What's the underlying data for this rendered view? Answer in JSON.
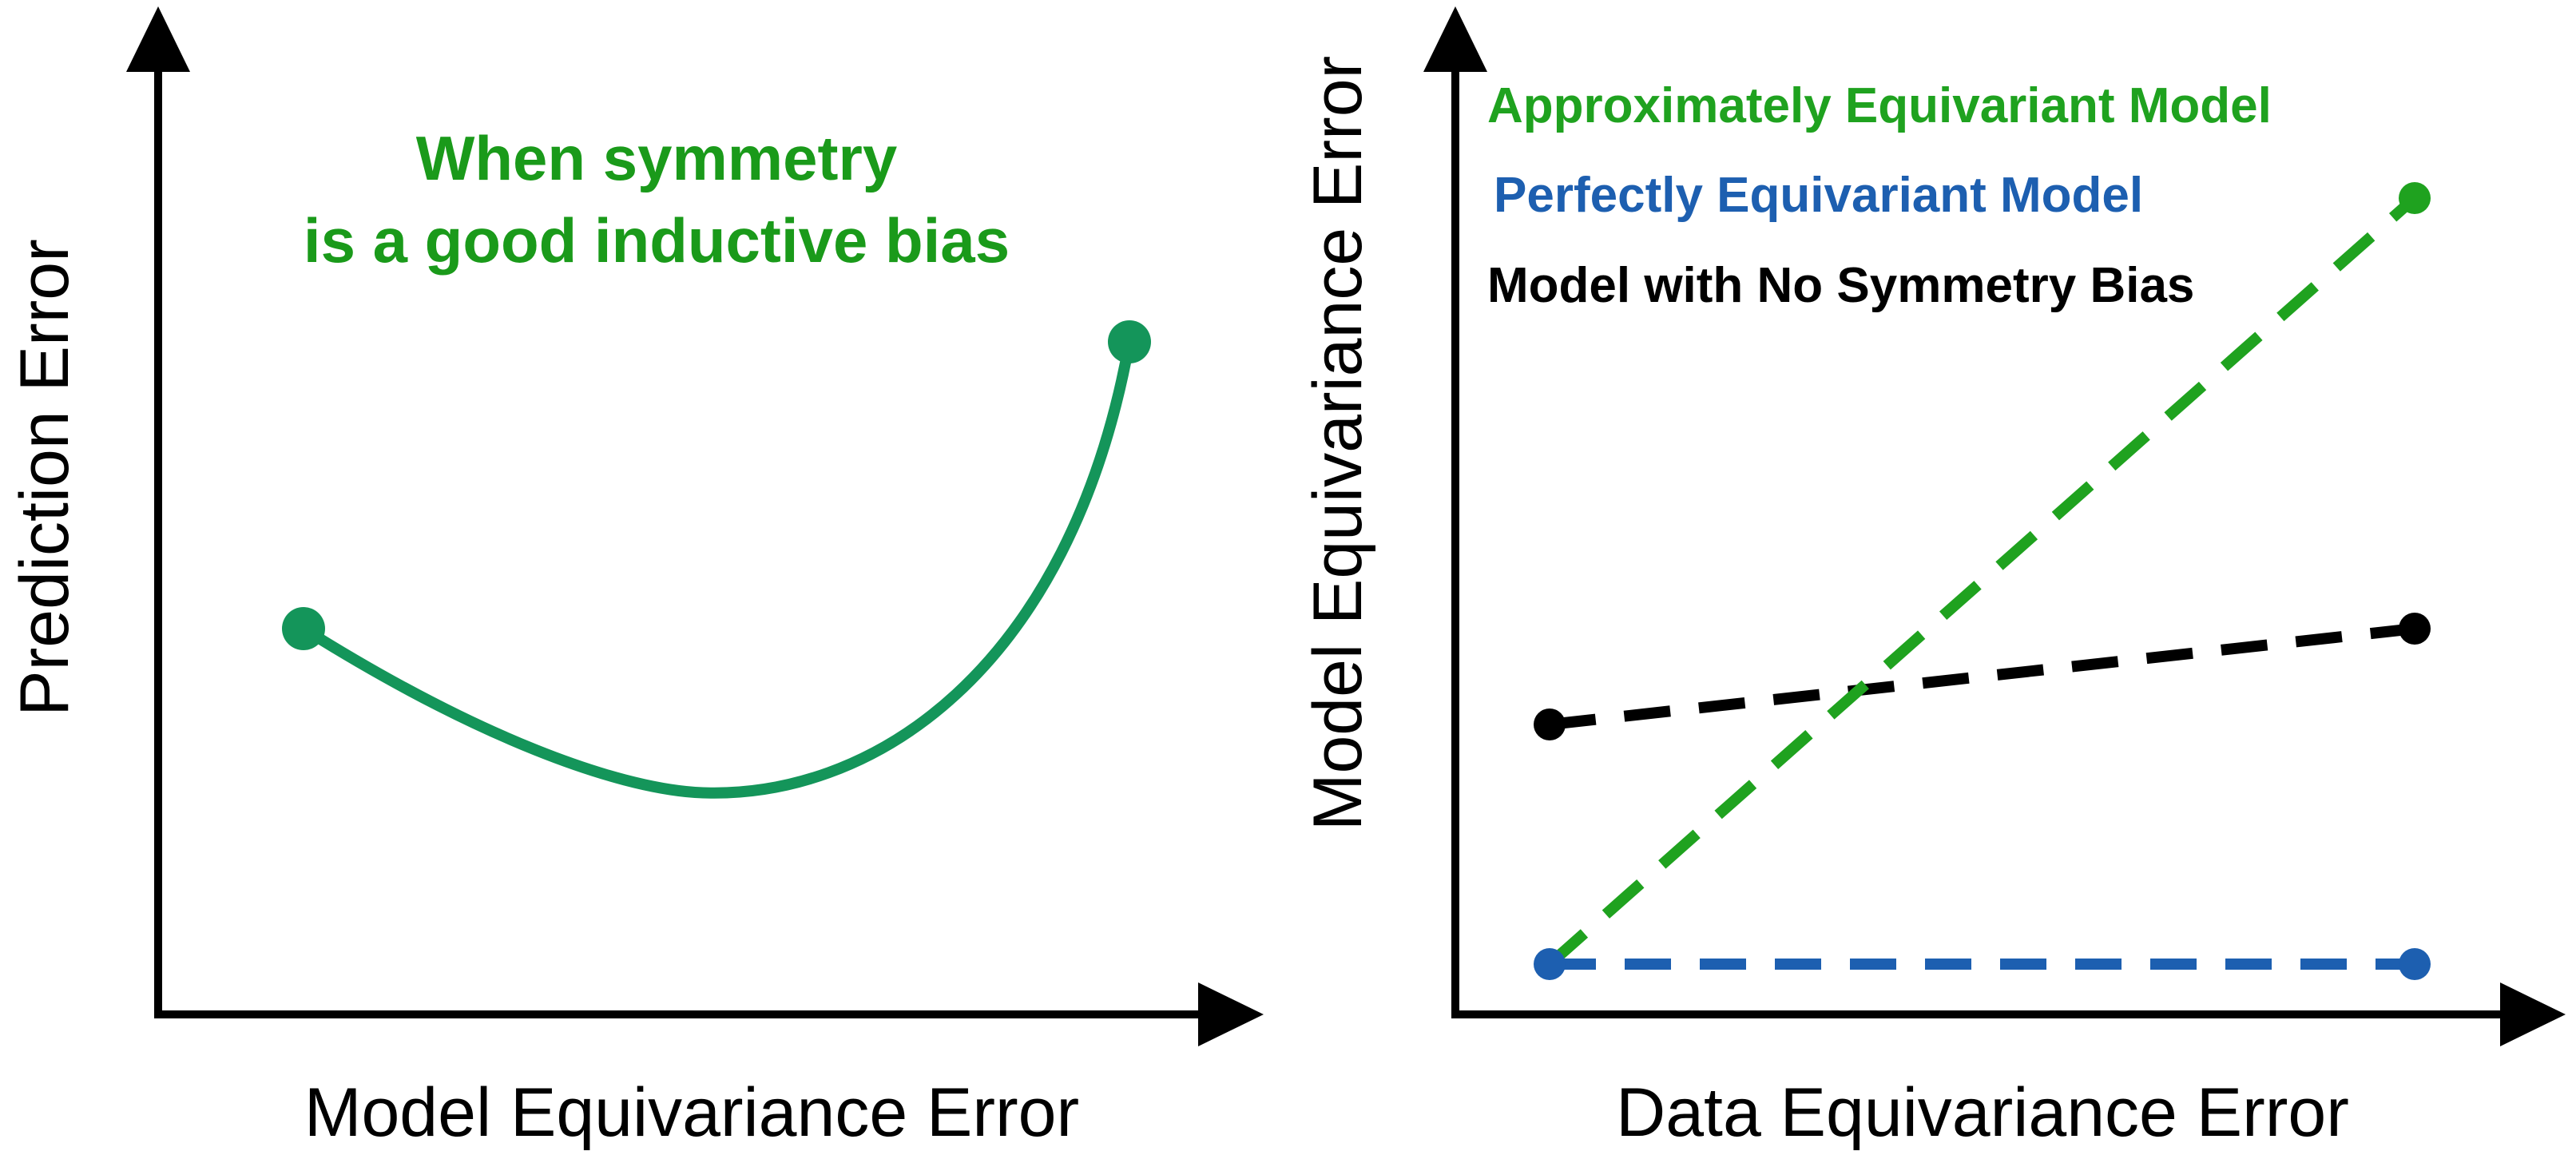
{
  "colors": {
    "green_text": "#1a9a1a",
    "green_curve": "#14955a",
    "green_dash": "#1fa21f",
    "blue": "#1d5fb0",
    "black": "#000000"
  },
  "left_plot": {
    "xlabel": "Model Equivariance Error",
    "ylabel": "Prediction Error",
    "annotation_line1": "When symmetry",
    "annotation_line2": "is a good inductive bias"
  },
  "right_plot": {
    "xlabel": "Data Equivariance Error",
    "ylabel": "Model Equivariance Error",
    "legend": [
      {
        "label": "Approximately Equivariant Model",
        "color": "#1fa21f"
      },
      {
        "label": "Perfectly Equivariant Model",
        "color": "#1d5fb0"
      },
      {
        "label": "Model with No Symmetry Bias",
        "color": "#000000"
      }
    ]
  }
}
